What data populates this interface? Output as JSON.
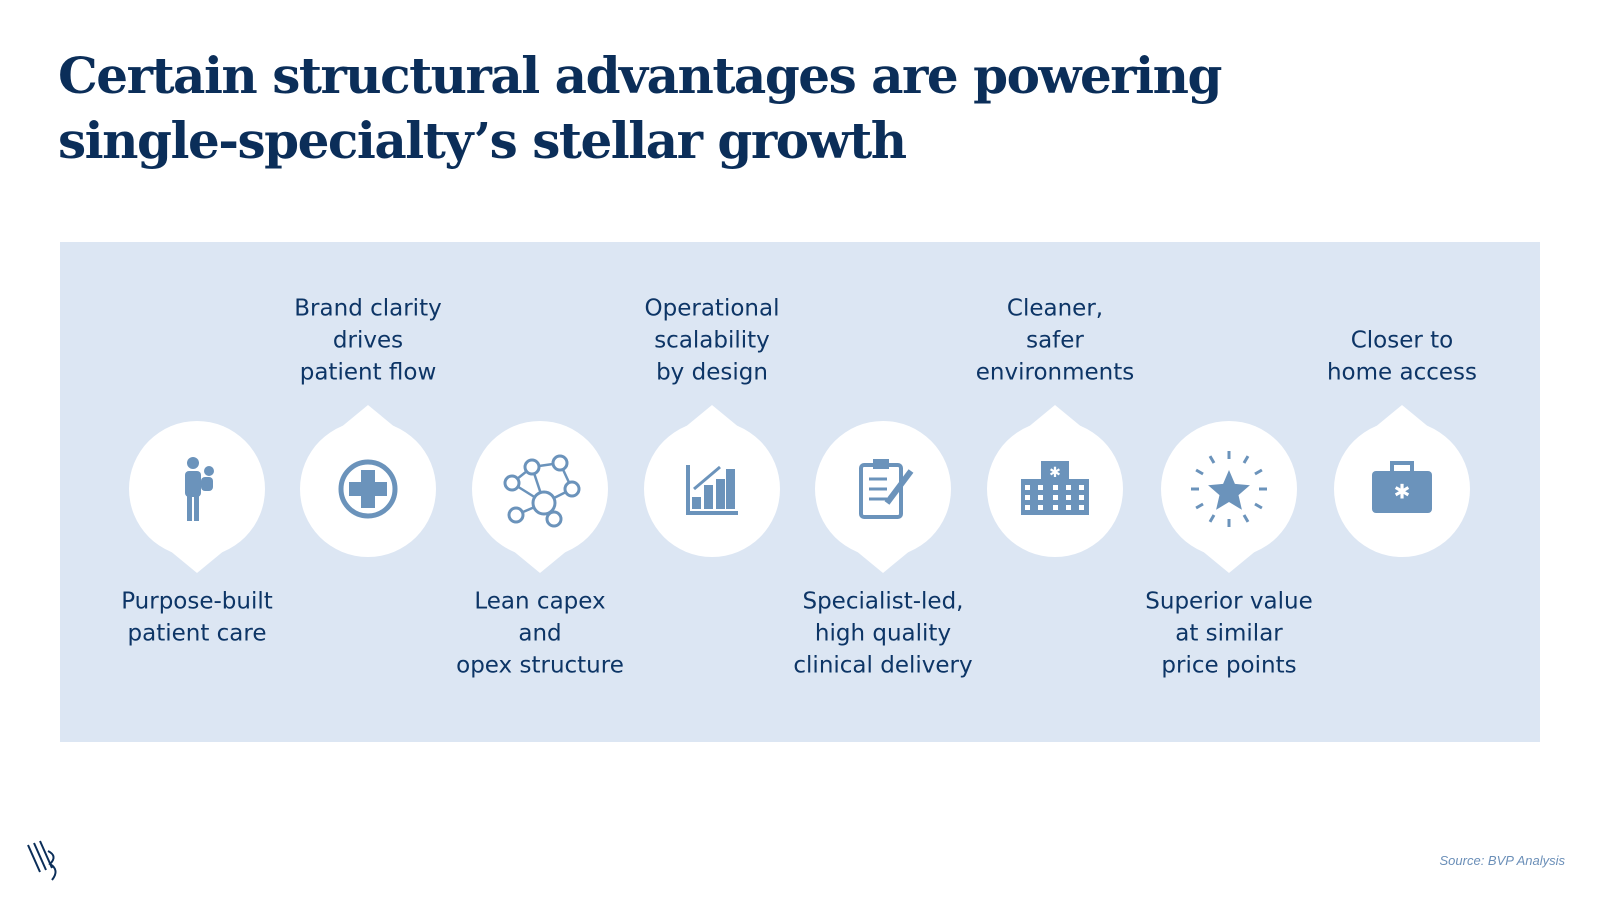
{
  "header": {
    "title_lines": [
      "Certain structural advantages are powering",
      "single-specialty’s stellar growth"
    ]
  },
  "items": [
    {
      "label_lines": [
        "Purpose-built",
        "patient care"
      ]
    },
    {
      "label_lines": [
        "Brand clarity",
        "drives",
        "patient flow"
      ]
    },
    {
      "label_lines": [
        "Lean capex",
        "and",
        "opex structure"
      ]
    },
    {
      "label_lines": [
        "Operational",
        "scalability",
        "by design"
      ]
    },
    {
      "label_lines": [
        "Specialist-led,",
        "high quality",
        "clinical delivery"
      ]
    },
    {
      "label_lines": [
        "Cleaner,",
        "safer",
        "environments"
      ]
    },
    {
      "label_lines": [
        "Superior value",
        "at similar",
        "price points"
      ]
    },
    {
      "label_lines": [
        "Closer to",
        "home access"
      ]
    }
  ],
  "footer": {
    "source": "Source: BVP Analysis"
  }
}
